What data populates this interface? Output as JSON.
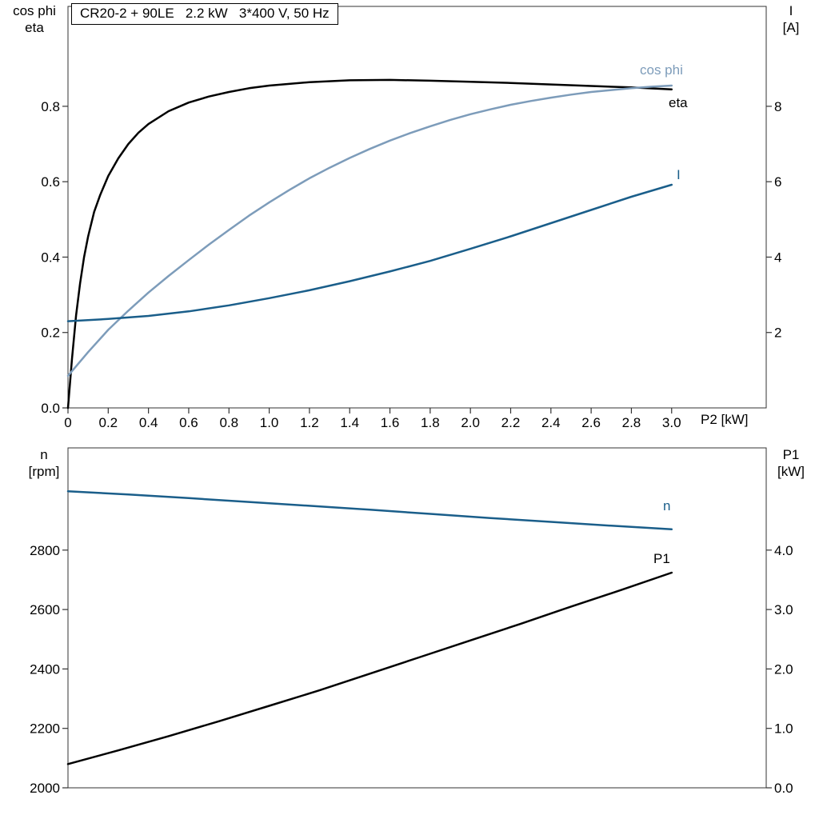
{
  "header": {
    "title_box": "CR20-2 + 90LE   2.2 kW   3*400 V, 50 Hz"
  },
  "colors": {
    "black": "#000000",
    "dark_blue": "#1a5e8a",
    "light_blue": "#7d9cba",
    "frame": "#333333"
  },
  "chart_data": [
    {
      "type": "line",
      "name": "motor-efficiency-cosphi-current",
      "x_axis": {
        "label": "P2 [kW]",
        "tick_labels": [
          "0",
          "0.2",
          "0.4",
          "0.6",
          "0.8",
          "1.0",
          "1.2",
          "1.4",
          "1.6",
          "1.8",
          "2.0",
          "2.2",
          "2.4",
          "2.6",
          "2.8",
          "3.0"
        ],
        "tick_values": [
          0,
          0.2,
          0.4,
          0.6,
          0.8,
          1.0,
          1.2,
          1.4,
          1.6,
          1.8,
          2.0,
          2.2,
          2.4,
          2.6,
          2.8,
          3.0
        ],
        "range": [
          0,
          3.47
        ]
      },
      "y_left": {
        "label_lines": [
          "cos phi",
          "eta"
        ],
        "tick_labels": [
          "0.0",
          "0.2",
          "0.4",
          "0.6",
          "0.8"
        ],
        "tick_values": [
          0,
          0.2,
          0.4,
          0.6,
          0.8
        ],
        "range": [
          0,
          1.065
        ]
      },
      "y_right": {
        "label_lines": [
          "I",
          "[A]"
        ],
        "tick_labels": [
          "2",
          "4",
          "6",
          "8"
        ],
        "tick_values": [
          2,
          4,
          6,
          8
        ],
        "range": [
          0,
          10.65
        ]
      },
      "series": [
        {
          "name": "eta",
          "label": "eta",
          "axis": "left",
          "color_key": "black",
          "points": [
            [
              0,
              0
            ],
            [
              0.02,
              0.13
            ],
            [
              0.04,
              0.245
            ],
            [
              0.06,
              0.33
            ],
            [
              0.08,
              0.4
            ],
            [
              0.1,
              0.455
            ],
            [
              0.13,
              0.52
            ],
            [
              0.16,
              0.565
            ],
            [
              0.2,
              0.615
            ],
            [
              0.25,
              0.662
            ],
            [
              0.3,
              0.7
            ],
            [
              0.35,
              0.73
            ],
            [
              0.4,
              0.753
            ],
            [
              0.5,
              0.787
            ],
            [
              0.6,
              0.81
            ],
            [
              0.7,
              0.826
            ],
            [
              0.8,
              0.838
            ],
            [
              0.9,
              0.848
            ],
            [
              1.0,
              0.855
            ],
            [
              1.2,
              0.864
            ],
            [
              1.4,
              0.869
            ],
            [
              1.6,
              0.87
            ],
            [
              1.8,
              0.868
            ],
            [
              2.0,
              0.865
            ],
            [
              2.2,
              0.862
            ],
            [
              2.4,
              0.858
            ],
            [
              2.6,
              0.854
            ],
            [
              2.8,
              0.85
            ],
            [
              3.0,
              0.845
            ]
          ]
        },
        {
          "name": "cos phi",
          "label": "cos phi",
          "axis": "left",
          "color_key": "light_blue",
          "points": [
            [
              0,
              0.085
            ],
            [
              0.1,
              0.148
            ],
            [
              0.2,
              0.207
            ],
            [
              0.3,
              0.258
            ],
            [
              0.4,
              0.306
            ],
            [
              0.5,
              0.35
            ],
            [
              0.6,
              0.392
            ],
            [
              0.7,
              0.433
            ],
            [
              0.8,
              0.472
            ],
            [
              0.9,
              0.51
            ],
            [
              1.0,
              0.545
            ],
            [
              1.1,
              0.578
            ],
            [
              1.2,
              0.609
            ],
            [
              1.3,
              0.637
            ],
            [
              1.4,
              0.663
            ],
            [
              1.5,
              0.687
            ],
            [
              1.6,
              0.709
            ],
            [
              1.7,
              0.729
            ],
            [
              1.8,
              0.747
            ],
            [
              1.9,
              0.764
            ],
            [
              2.0,
              0.779
            ],
            [
              2.1,
              0.792
            ],
            [
              2.2,
              0.804
            ],
            [
              2.3,
              0.814
            ],
            [
              2.4,
              0.823
            ],
            [
              2.5,
              0.831
            ],
            [
              2.6,
              0.838
            ],
            [
              2.7,
              0.843
            ],
            [
              2.8,
              0.848
            ],
            [
              2.9,
              0.852
            ],
            [
              3.0,
              0.855
            ]
          ]
        },
        {
          "name": "I",
          "label": "I",
          "axis": "right",
          "color_key": "dark_blue",
          "points": [
            [
              0,
              2.3
            ],
            [
              0.2,
              2.36
            ],
            [
              0.4,
              2.44
            ],
            [
              0.6,
              2.56
            ],
            [
              0.8,
              2.72
            ],
            [
              1.0,
              2.91
            ],
            [
              1.2,
              3.12
            ],
            [
              1.4,
              3.36
            ],
            [
              1.6,
              3.62
            ],
            [
              1.8,
              3.9
            ],
            [
              2.0,
              4.22
            ],
            [
              2.2,
              4.55
            ],
            [
              2.4,
              4.9
            ],
            [
              2.6,
              5.25
            ],
            [
              2.8,
              5.6
            ],
            [
              3.0,
              5.92
            ]
          ]
        }
      ]
    },
    {
      "type": "line",
      "name": "motor-speed-power",
      "x_axis": {
        "label": "",
        "tick_labels": [],
        "tick_values": [],
        "range": [
          0,
          3.47
        ]
      },
      "y_left": {
        "label_lines": [
          "n",
          "[rpm]"
        ],
        "tick_labels": [
          "2000",
          "2200",
          "2400",
          "2600",
          "2800"
        ],
        "tick_values": [
          2000,
          2200,
          2400,
          2600,
          2800
        ],
        "range": [
          2000,
          3144
        ]
      },
      "y_right": {
        "label_lines": [
          "P1",
          "[kW]"
        ],
        "tick_labels": [
          "0.0",
          "1.0",
          "2.0",
          "3.0",
          "4.0"
        ],
        "tick_values": [
          0,
          1,
          2,
          3,
          4
        ],
        "range": [
          0,
          5.72
        ]
      },
      "series": [
        {
          "name": "n",
          "label": "n",
          "axis": "left",
          "color_key": "dark_blue",
          "points": [
            [
              0,
              2998
            ],
            [
              0.3,
              2987
            ],
            [
              0.6,
              2975
            ],
            [
              0.9,
              2962
            ],
            [
              1.2,
              2949
            ],
            [
              1.5,
              2936
            ],
            [
              1.8,
              2922
            ],
            [
              2.1,
              2908
            ],
            [
              2.4,
              2895
            ],
            [
              2.7,
              2882
            ],
            [
              3.0,
              2870
            ]
          ]
        },
        {
          "name": "P1",
          "label": "P1",
          "axis": "right",
          "color_key": "black",
          "points": [
            [
              0,
              0.4
            ],
            [
              0.25,
              0.63
            ],
            [
              0.5,
              0.87
            ],
            [
              0.75,
              1.12
            ],
            [
              1.0,
              1.38
            ],
            [
              1.25,
              1.64
            ],
            [
              1.5,
              1.92
            ],
            [
              1.75,
              2.2
            ],
            [
              2.0,
              2.48
            ],
            [
              2.25,
              2.76
            ],
            [
              2.5,
              3.05
            ],
            [
              2.75,
              3.33
            ],
            [
              3.0,
              3.62
            ]
          ]
        }
      ]
    }
  ]
}
